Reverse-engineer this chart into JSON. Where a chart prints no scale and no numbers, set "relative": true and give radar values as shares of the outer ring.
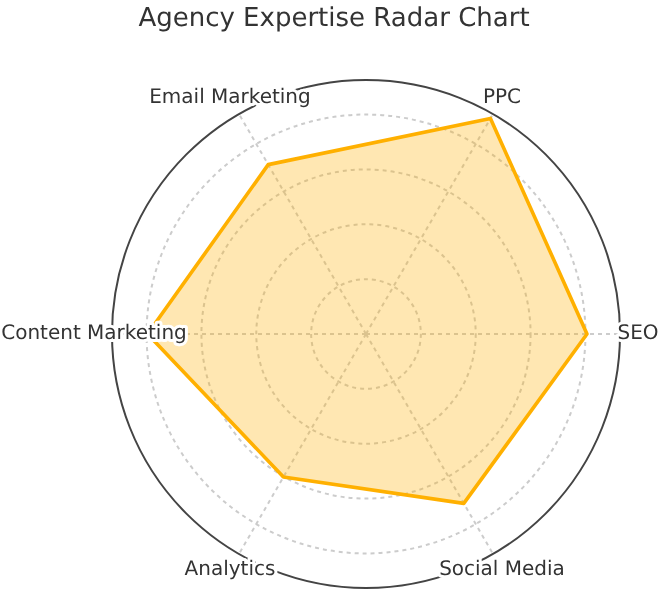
{
  "chart_data": {
    "type": "radar",
    "title": "Agency Expertise Radar Chart",
    "categories": [
      "PPC",
      "SEO",
      "Social Media",
      "Analytics",
      "Content Marketing",
      "Email Marketing"
    ],
    "relative": true,
    "grid": true,
    "series": [
      {
        "color": "#ffb000",
        "values": [
          0.98,
          0.87,
          0.77,
          0.65,
          0.86,
          0.77
        ]
      }
    ]
  }
}
